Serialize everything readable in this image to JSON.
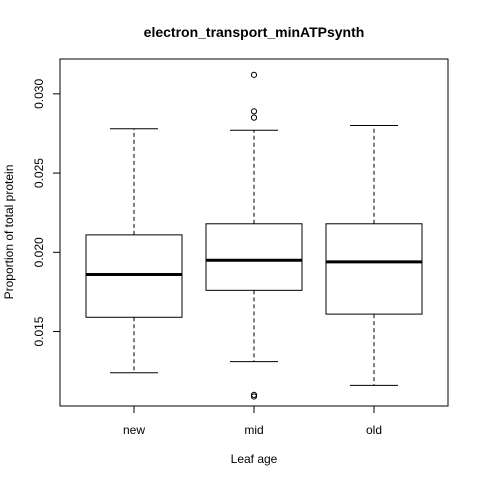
{
  "chart_data": {
    "type": "boxplot",
    "title": "electron_transport_minATPsynth",
    "xlabel": "Leaf age",
    "ylabel": "Proportion of total protein",
    "categories": [
      "new",
      "mid",
      "old"
    ],
    "ylim": [
      0.0103,
      0.0322
    ],
    "yticks": [
      "0.015",
      "0.020",
      "0.025",
      "0.030"
    ],
    "ytick_values": [
      0.015,
      0.02,
      0.025,
      0.03
    ],
    "boxes": [
      {
        "category": "new",
        "whisker_low": 0.0124,
        "q1": 0.0159,
        "median": 0.0186,
        "q3": 0.0211,
        "whisker_high": 0.0278,
        "outliers": []
      },
      {
        "category": "mid",
        "whisker_low": 0.0131,
        "q1": 0.0176,
        "median": 0.0195,
        "q3": 0.0218,
        "whisker_high": 0.0277,
        "outliers": [
          0.0312,
          0.0289,
          0.0285,
          0.011,
          0.0109
        ]
      },
      {
        "category": "old",
        "whisker_low": 0.0116,
        "q1": 0.0161,
        "median": 0.0194,
        "q3": 0.0218,
        "whisker_high": 0.028,
        "outliers": []
      }
    ],
    "grid": false,
    "legend": "none",
    "colors": {
      "box_fill": "#ffffff",
      "stroke": "#000000"
    }
  }
}
